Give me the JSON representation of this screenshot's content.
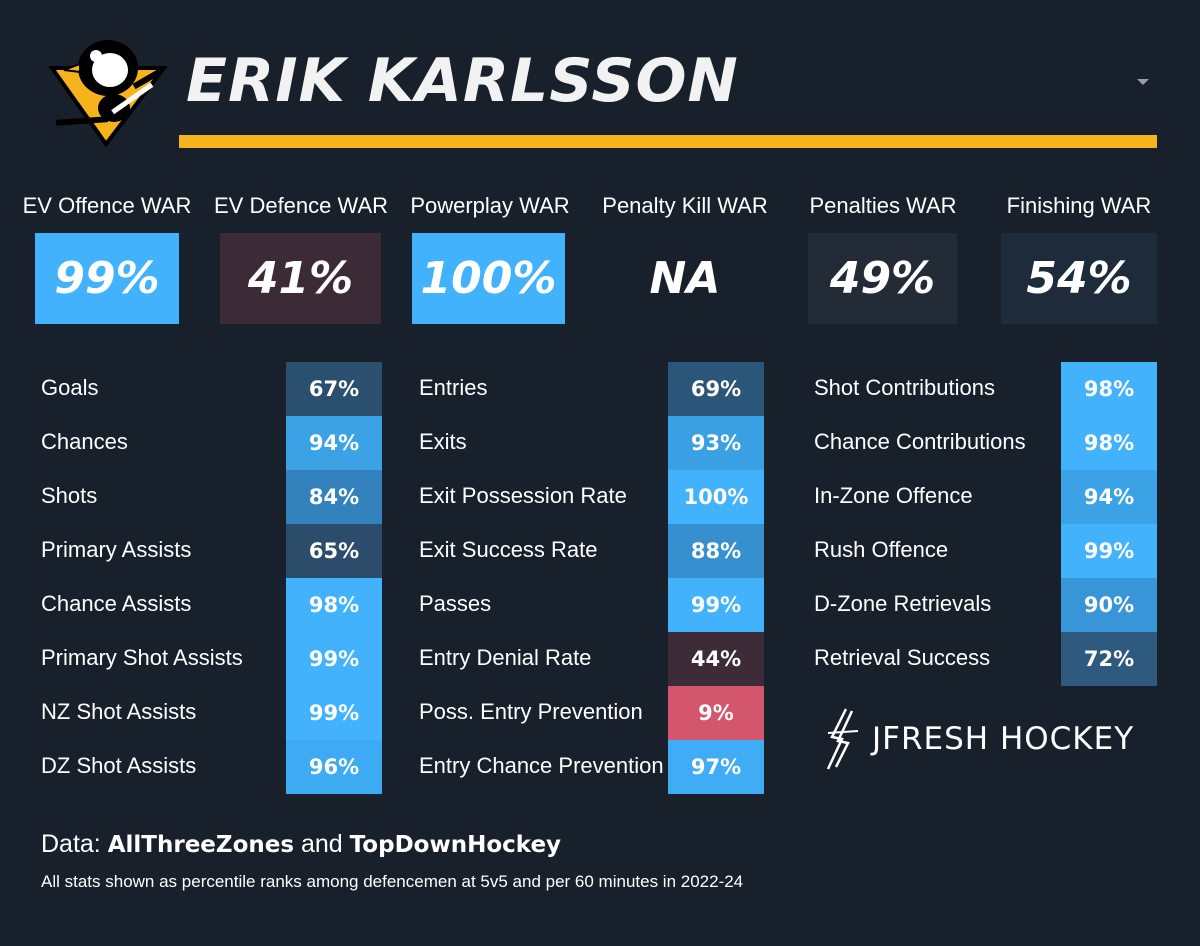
{
  "header": {
    "player_name": "ERIK KARLSSON",
    "team_logo_icon": "penguins-logo-icon",
    "accent_color": "#f6b31b"
  },
  "war": [
    {
      "label": "EV Offence WAR",
      "value": "99%",
      "color": "#42b2fc"
    },
    {
      "label": "EV Defence WAR",
      "value": "41%",
      "color": "#3c2b37"
    },
    {
      "label": "Powerplay WAR",
      "value": "100%",
      "color": "#42b2fc"
    },
    {
      "label": "Penalty Kill WAR",
      "value": "NA",
      "color": "#18202b"
    },
    {
      "label": "Penalties WAR",
      "value": "49%",
      "color": "#232b37"
    },
    {
      "label": "Finishing WAR",
      "value": "54%",
      "color": "#1e2b3b"
    }
  ],
  "stats": {
    "offence": [
      {
        "label": "Goals",
        "value": "67%",
        "color": "#2b506f"
      },
      {
        "label": "Chances",
        "value": "94%",
        "color": "#3ca2e6"
      },
      {
        "label": "Shots",
        "value": "84%",
        "color": "#3482bd"
      },
      {
        "label": "Primary Assists",
        "value": "65%",
        "color": "#2b4c6a"
      },
      {
        "label": "Chance Assists",
        "value": "98%",
        "color": "#42b2fc"
      },
      {
        "label": "Primary Shot Assists",
        "value": "99%",
        "color": "#42b2fc"
      },
      {
        "label": "NZ Shot Assists",
        "value": "99%",
        "color": "#42b2fc"
      },
      {
        "label": "DZ Shot Assists",
        "value": "96%",
        "color": "#3eaaf3"
      }
    ],
    "transition": [
      {
        "label": "Entries",
        "value": "69%",
        "color": "#2c5679"
      },
      {
        "label": "Exits",
        "value": "93%",
        "color": "#3ba0e3"
      },
      {
        "label": "Exit Possession Rate",
        "value": "100%",
        "color": "#42b2fc"
      },
      {
        "label": "Exit Success Rate",
        "value": "88%",
        "color": "#3690cf"
      },
      {
        "label": "Passes",
        "value": "99%",
        "color": "#42b2fc"
      },
      {
        "label": "Entry Denial Rate",
        "value": "44%",
        "color": "#3d2b38"
      },
      {
        "label": "Poss. Entry Prevention",
        "value": "9%",
        "color": "#d4566c"
      },
      {
        "label": "Entry Chance Prevention",
        "value": "97%",
        "color": "#40acf5"
      }
    ],
    "involvement": [
      {
        "label": "Shot Contributions",
        "value": "98%",
        "color": "#42b2fc"
      },
      {
        "label": "Chance Contributions",
        "value": "98%",
        "color": "#42b2fc"
      },
      {
        "label": "In-Zone Offence",
        "value": "94%",
        "color": "#3ca2e6"
      },
      {
        "label": "Rush Offence",
        "value": "99%",
        "color": "#42b2fc"
      },
      {
        "label": "D-Zone Retrievals",
        "value": "90%",
        "color": "#3896d8"
      },
      {
        "label": "Retrieval Success",
        "value": "72%",
        "color": "#2d5a7e"
      }
    ]
  },
  "branding": {
    "text": "JFRESH HOCKEY",
    "icon": "jfresh-logo-icon"
  },
  "footer": {
    "source_prefix": "Data:",
    "source_a": "AllThreeZones",
    "source_and": "and",
    "source_b": "TopDownHockey",
    "note": "All stats shown as percentile ranks among defencemen at 5v5 and per 60 minutes in 2022-24"
  }
}
